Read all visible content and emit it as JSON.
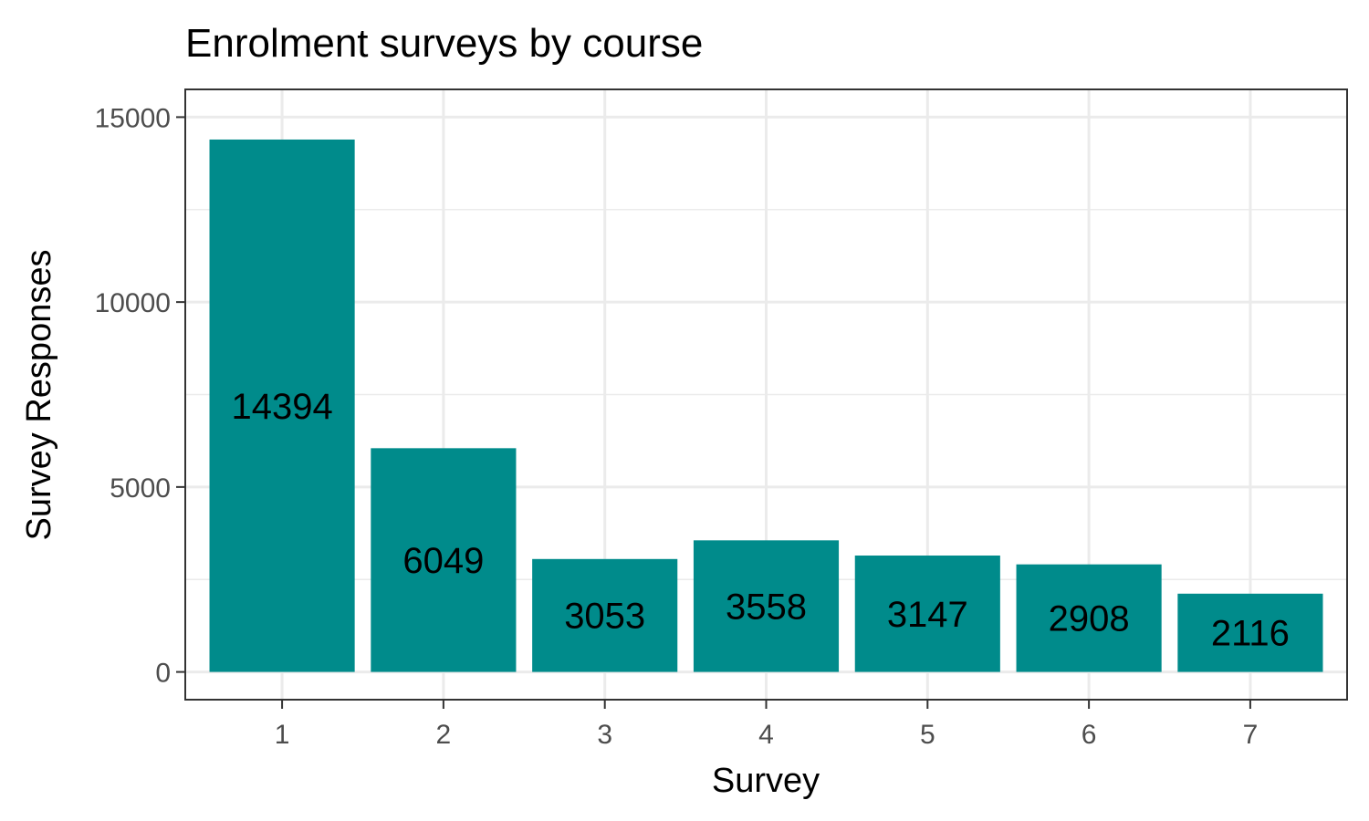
{
  "chart_data": {
    "type": "bar",
    "title": "Enrolment surveys by course",
    "xlabel": "Survey",
    "ylabel": "Survey Responses",
    "categories": [
      "1",
      "2",
      "3",
      "4",
      "5",
      "6",
      "7"
    ],
    "values": [
      14394,
      6049,
      3053,
      3558,
      3147,
      2908,
      2116
    ],
    "ylim": [
      0,
      15000
    ],
    "yticks": [
      0,
      5000,
      10000,
      15000
    ],
    "yticks_labels": [
      "0",
      "5000",
      "10000",
      "15000"
    ],
    "grid": true,
    "legend": "none",
    "bar_color": "#008B8B",
    "panel_border_color": "#333333",
    "grid_color": "#EBEBEB"
  }
}
